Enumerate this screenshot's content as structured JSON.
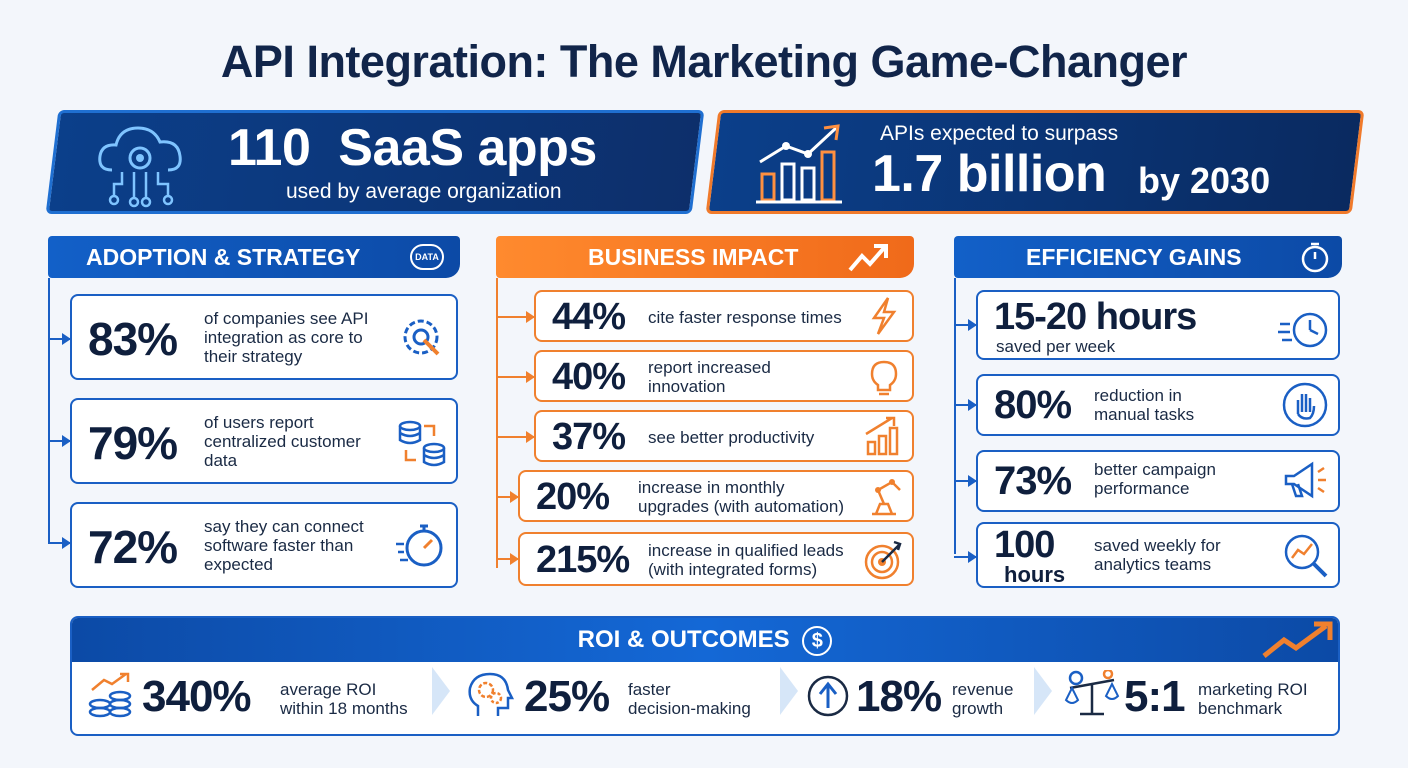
{
  "title": "API Integration: The Marketing Game-Changer",
  "banner_left": {
    "number": "110",
    "unit": "SaaS apps",
    "caption": "used by average organization",
    "icon": "cloud-gear-icon"
  },
  "banner_right": {
    "prefix": "APIs expected to surpass",
    "number": "1.7 billion",
    "suffix": "by 2030",
    "icon": "bar-chart-growth-icon"
  },
  "adoption": {
    "header": "ADOPTION & STRATEGY",
    "header_icon_text": "DATA",
    "items": [
      {
        "pct": "83%",
        "text_lines": [
          "of companies see API",
          "integration as core to",
          "their strategy"
        ],
        "icon": "gear-wrench-icon"
      },
      {
        "pct": "79%",
        "text_lines": [
          "of users report",
          "centralized customer",
          "data"
        ],
        "icon": "database-sync-icon"
      },
      {
        "pct": "72%",
        "text_lines": [
          "say they can connect",
          "software faster than",
          "expected"
        ],
        "icon": "stopwatch-icon"
      }
    ]
  },
  "impact": {
    "header": "BUSINESS IMPACT",
    "items": [
      {
        "pct": "44%",
        "text_lines": [
          "cite faster response times"
        ],
        "icon": "lightning-icon"
      },
      {
        "pct": "40%",
        "text_lines": [
          "report increased",
          "innovation"
        ],
        "icon": "lightbulb-icon"
      },
      {
        "pct": "37%",
        "text_lines": [
          "see better productivity"
        ],
        "icon": "bar-chart-icon"
      },
      {
        "pct": "20%",
        "text_lines": [
          "increase in monthly",
          "upgrades (with automation)"
        ],
        "icon": "robot-arm-icon"
      },
      {
        "pct": "215%",
        "text_lines": [
          "increase in qualified leads",
          "(with integrated forms)"
        ],
        "icon": "target-icon"
      }
    ]
  },
  "efficiency": {
    "header": "EFFICIENCY GAINS",
    "items": [
      {
        "pct": "15-20 hours",
        "text_lines": [
          "saved per week"
        ],
        "icon": "fast-clock-icon"
      },
      {
        "pct": "80%",
        "text_lines": [
          "reduction in",
          "manual tasks"
        ],
        "icon": "hand-stop-icon"
      },
      {
        "pct": "73%",
        "text_lines": [
          "better campaign",
          "performance"
        ],
        "icon": "megaphone-icon"
      },
      {
        "pct": "100",
        "pct2": "hours",
        "text_lines": [
          "saved weekly for",
          "analytics teams"
        ],
        "icon": "magnifier-chart-icon"
      }
    ]
  },
  "roi": {
    "header": "ROI & OUTCOMES",
    "items": [
      {
        "pct": "340%",
        "text_lines": [
          "average ROI",
          "within 18 months"
        ],
        "icon": "coins-growth-icon"
      },
      {
        "pct": "25%",
        "text_lines": [
          "faster",
          "decision-making"
        ],
        "icon": "head-gears-icon"
      },
      {
        "pct": "18%",
        "text_lines": [
          "revenue",
          "growth"
        ],
        "icon": "arrow-up-circle-icon"
      },
      {
        "pct": "5:1",
        "text_lines": [
          "marketing ROI",
          "benchmark"
        ],
        "icon": "balance-scale-icon"
      }
    ]
  },
  "colors": {
    "navy": "#0f1f3d",
    "blue": "#1a5fc4",
    "orange": "#f0802e"
  }
}
